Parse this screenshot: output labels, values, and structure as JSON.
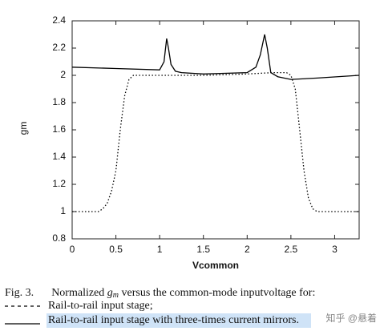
{
  "chart_data": {
    "type": "line",
    "xlabel": "Vcommon",
    "ylabel": "gm",
    "xlim": [
      0,
      3.28
    ],
    "ylim": [
      0.8,
      2.4
    ],
    "xticks": [
      0,
      0.5,
      1,
      1.5,
      2,
      2.5,
      3
    ],
    "yticks": [
      0.8,
      1,
      1.2,
      1.4,
      1.6,
      1.8,
      2,
      2.2,
      2.4
    ],
    "grid": false,
    "series": [
      {
        "name": "Rail-to-rail input stage;",
        "color": "#000000",
        "linestyle": "dotted",
        "x": [
          0,
          0.3,
          0.35,
          0.4,
          0.45,
          0.5,
          0.55,
          0.6,
          0.65,
          0.7,
          1.0,
          1.5,
          2.0,
          2.3,
          2.45,
          2.5,
          2.55,
          2.6,
          2.65,
          2.7,
          2.75,
          2.8,
          3.28
        ],
        "values": [
          1.0,
          1.0,
          1.02,
          1.06,
          1.15,
          1.3,
          1.6,
          1.85,
          1.97,
          2.0,
          2.0,
          2.0,
          2.01,
          2.02,
          2.02,
          2.0,
          1.9,
          1.6,
          1.3,
          1.1,
          1.02,
          1.0,
          1.0
        ]
      },
      {
        "name": "Rail-to-rail input stage with three-times current mirrors.",
        "color": "#000000",
        "linestyle": "solid",
        "x": [
          0,
          0.5,
          1.0,
          1.05,
          1.08,
          1.1,
          1.13,
          1.18,
          1.25,
          1.5,
          2.0,
          2.1,
          2.15,
          2.2,
          2.23,
          2.27,
          2.35,
          2.5,
          2.8,
          3.28
        ],
        "values": [
          2.06,
          2.05,
          2.04,
          2.1,
          2.27,
          2.2,
          2.08,
          2.03,
          2.02,
          2.01,
          2.02,
          2.06,
          2.15,
          2.3,
          2.2,
          2.02,
          1.99,
          1.97,
          1.98,
          2.0
        ]
      }
    ]
  },
  "caption": {
    "label": "Fig. 3.",
    "text_before": "Normalized ",
    "symbol": "g",
    "subscript": "m",
    "text_after": " versus the common-mode inputvoltage for:"
  },
  "watermark": "知乎 @悬着"
}
